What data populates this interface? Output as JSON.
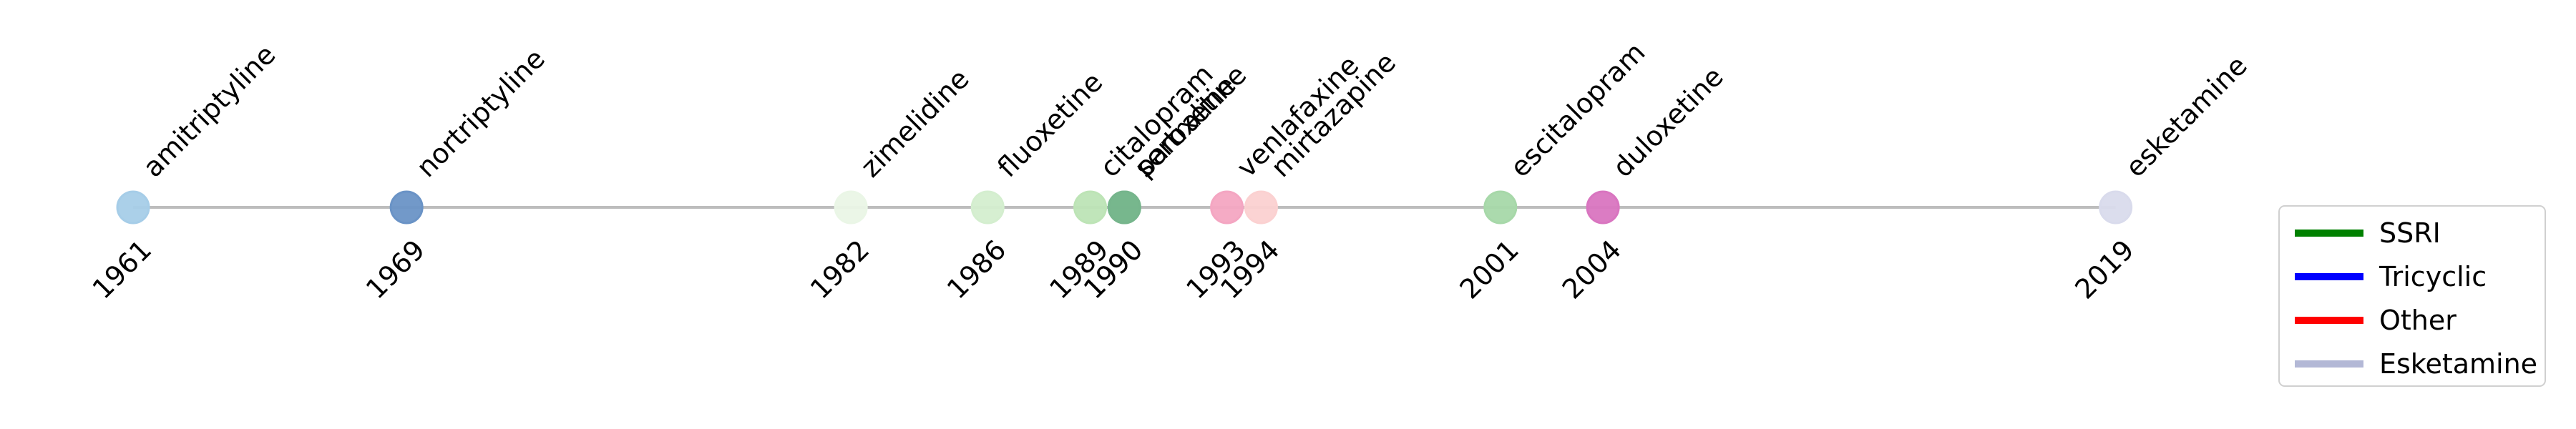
{
  "chart_data": {
    "type": "scatter",
    "title": "",
    "xlabel": "",
    "ylabel": "",
    "xlim": [
      1960,
      2020
    ],
    "grid": false,
    "axes_visible": false,
    "legend_placement": "lower-right",
    "timeline_line_color": "#bdbdbd",
    "legend": [
      {
        "label": "SSRI",
        "color": "#008000"
      },
      {
        "label": "Tricyclic",
        "color": "#0000ff"
      },
      {
        "label": "Other",
        "color": "#ff0000"
      },
      {
        "label": "Esketamine",
        "color": "#b3b8d6"
      }
    ],
    "points": [
      {
        "drug": "amitriptyline",
        "year": 1961,
        "color": "#a6cde8"
      },
      {
        "drug": "nortriptyline",
        "year": 1969,
        "color": "#6a93c6"
      },
      {
        "drug": "zimelidine",
        "year": 1982,
        "color": "#eaf6e6"
      },
      {
        "drug": "fluoxetine",
        "year": 1986,
        "color": "#d4eecf"
      },
      {
        "drug": "citalopram",
        "year": 1989,
        "color": "#bde4b6"
      },
      {
        "drug": "paroxetine",
        "year": 1990,
        "color": "#8cc79b"
      },
      {
        "drug": "sertraline",
        "year": 1990,
        "color": "#76b58c"
      },
      {
        "drug": "venlafaxine",
        "year": 1993,
        "color": "#f4a6c2"
      },
      {
        "drug": "mirtazapine",
        "year": 1994,
        "color": "#fbd1d1"
      },
      {
        "drug": "escitalopram",
        "year": 2001,
        "color": "#a7d8a9"
      },
      {
        "drug": "duloxetine",
        "year": 2004,
        "color": "#d975c0"
      },
      {
        "drug": "esketamine",
        "year": 2019,
        "color": "#d9dbec"
      }
    ]
  }
}
